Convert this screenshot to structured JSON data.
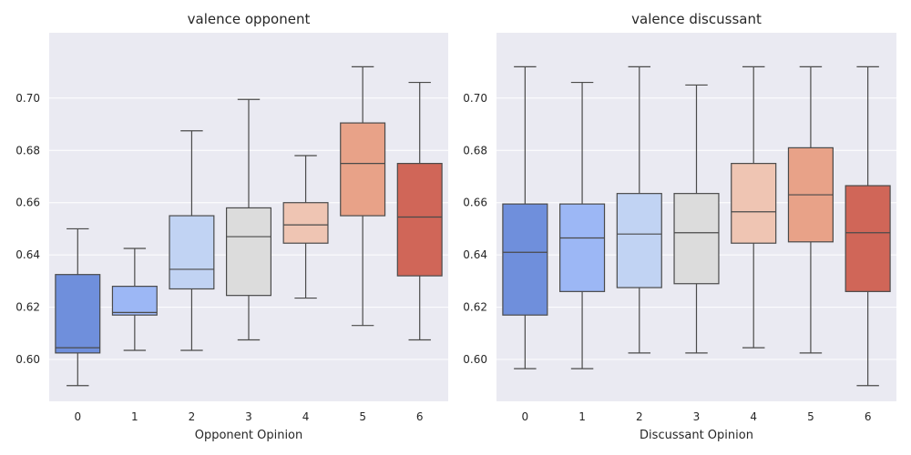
{
  "chart_data": [
    {
      "type": "box",
      "title": "valence opponent",
      "xlabel": "Opponent Opinion",
      "ylabel": "",
      "categories": [
        "0",
        "1",
        "2",
        "3",
        "4",
        "5",
        "6"
      ],
      "ylim": [
        0.584,
        0.725
      ],
      "yticks": [
        0.6,
        0.62,
        0.64,
        0.66,
        0.68,
        0.7
      ],
      "ytick_labels": [
        "0.60",
        "0.62",
        "0.64",
        "0.66",
        "0.68",
        "0.70"
      ],
      "grid": true,
      "colors": [
        "#6f8fdc",
        "#9cb7f5",
        "#c1d3f3",
        "#dcdcdc",
        "#efc5b3",
        "#e8a288",
        "#d06658"
      ],
      "boxes": [
        {
          "whislo": 0.59,
          "q1": 0.6025,
          "med": 0.6045,
          "q3": 0.6325,
          "whishi": 0.65
        },
        {
          "whislo": 0.6035,
          "q1": 0.617,
          "med": 0.618,
          "q3": 0.628,
          "whishi": 0.6425
        },
        {
          "whislo": 0.6035,
          "q1": 0.627,
          "med": 0.6345,
          "q3": 0.655,
          "whishi": 0.6875
        },
        {
          "whislo": 0.6075,
          "q1": 0.6245,
          "med": 0.647,
          "q3": 0.658,
          "whishi": 0.6995
        },
        {
          "whislo": 0.6235,
          "q1": 0.6445,
          "med": 0.6515,
          "q3": 0.66,
          "whishi": 0.678
        },
        {
          "whislo": 0.613,
          "q1": 0.655,
          "med": 0.675,
          "q3": 0.6905,
          "whishi": 0.712
        },
        {
          "whislo": 0.6075,
          "q1": 0.632,
          "med": 0.6545,
          "q3": 0.675,
          "whishi": 0.706
        }
      ]
    },
    {
      "type": "box",
      "title": "valence discussant",
      "xlabel": "Discussant Opinion",
      "ylabel": "",
      "categories": [
        "0",
        "1",
        "2",
        "3",
        "4",
        "5",
        "6"
      ],
      "ylim": [
        0.584,
        0.725
      ],
      "yticks": [
        0.6,
        0.62,
        0.64,
        0.66,
        0.68,
        0.7
      ],
      "ytick_labels": [
        "0.60",
        "0.62",
        "0.64",
        "0.66",
        "0.68",
        "0.70"
      ],
      "grid": true,
      "colors": [
        "#6f8fdc",
        "#9cb7f5",
        "#c1d3f3",
        "#dcdcdc",
        "#efc5b3",
        "#e8a288",
        "#d06658"
      ],
      "boxes": [
        {
          "whislo": 0.5965,
          "q1": 0.617,
          "med": 0.641,
          "q3": 0.6595,
          "whishi": 0.712
        },
        {
          "whislo": 0.5965,
          "q1": 0.626,
          "med": 0.6465,
          "q3": 0.6595,
          "whishi": 0.706
        },
        {
          "whislo": 0.6025,
          "q1": 0.6275,
          "med": 0.648,
          "q3": 0.6635,
          "whishi": 0.712
        },
        {
          "whislo": 0.6025,
          "q1": 0.629,
          "med": 0.6485,
          "q3": 0.6635,
          "whishi": 0.705
        },
        {
          "whislo": 0.6045,
          "q1": 0.6445,
          "med": 0.6565,
          "q3": 0.675,
          "whishi": 0.712
        },
        {
          "whislo": 0.6025,
          "q1": 0.645,
          "med": 0.663,
          "q3": 0.681,
          "whishi": 0.712
        },
        {
          "whislo": 0.59,
          "q1": 0.626,
          "med": 0.6485,
          "q3": 0.6665,
          "whishi": 0.712
        }
      ]
    }
  ]
}
